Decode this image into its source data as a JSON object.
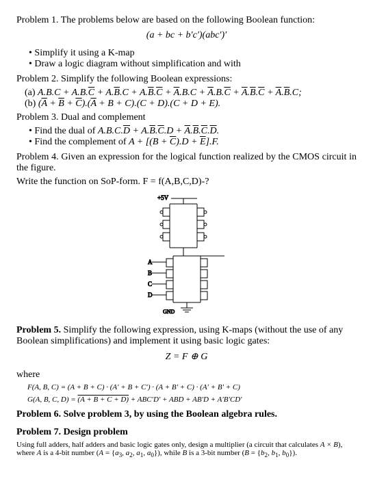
{
  "p1": {
    "title": "Problem 1. The problems below are based on the following Boolean function:",
    "expr": "(a + bc + b′c′)(abc′)′",
    "b1": "Simplify it using a K-map",
    "b2": "Draw a logic diagram without simplification and with"
  },
  "p2": {
    "title": "Problem 2. Simplify the following Boolean expressions:",
    "a_label": "(a)",
    "a_expr_html": "A.B.C + A.B.<span class='ov'>C</span> + A.<span class='ov'>B</span>.C + A.<span class='ov'>B</span>.<span class='ov'>C</span> + <span class='ov'>A</span>.B.C + <span class='ov'>A</span>.B.<span class='ov'>C</span> + <span class='ov'>A</span>.<span class='ov'>B</span>.<span class='ov'>C</span> + <span class='ov'>A</span>.<span class='ov'>B</span>.C;",
    "b_label": "(b)",
    "b_expr_html": "(<span class='ov'>A</span> + <span class='ov'>B</span> + <span class='ov'>C</span>).(<span class='ov'>A</span> + B + C).(C + D).(C + D + E)."
  },
  "p3": {
    "title": "Problem 3. Dual and complement",
    "b1_prefix": "Find the dual of ",
    "b1_expr_html": "A.B.C.<span class='ov'>D</span> + A.<span class='ov'>B</span>.<span class='ov'>C</span>.D + <span class='ov'>A</span>.<span class='ov'>B</span>.<span class='ov'>C</span>.<span class='ov'>D</span>.",
    "b2_prefix": "Find the complement of ",
    "b2_expr_html": "A + [(B + <span class='ov'>C</span>).D + <span class='ov'>E</span>].F."
  },
  "p4": {
    "title": "Problem 4. Given an expression for the logical function realized by the CMOS circuit in the figure.",
    "line2": "Write the function on SoP-form. F = f(A,B,C,D)-?",
    "fig": {
      "vdd": "+5V",
      "labels": [
        "A",
        "B",
        "C",
        "D"
      ],
      "gnd": "GND"
    }
  },
  "p5": {
    "title_html": "<b>Problem 5.</b> Simplify the following expression, using K-maps (without the use of any Boolean simplifications) and implement it using basic logic gates:",
    "z": "Z = F ⊕ G",
    "where": "where",
    "f_expr": "F(A, B, C) = (A + B + C) · (A′ + B + C′) · (A + B′ + C) · (A′ + B′ + C)",
    "g_expr_html": "G(A, B, C, D) = <span class='ov'>(A + B + C + D)</span> + ABC′D′ + ABD + AB′D + A′B′CD′"
  },
  "p6": {
    "title_html": "<b>Problem 6. Solve problem 3, by using the Boolean algebra rules.</b>"
  },
  "p7": {
    "title_html": "<b>Problem 7. Design problem</b>",
    "body_html": "Using full adders, half adders and basic logic gates only, design a multiplier (a circuit that calculates <i>A × B</i>), where <i>A</i> is a 4-bit number (<i>A</i> = {<i>a</i><sub>3</sub>, <i>a</i><sub>2</sub>, <i>a</i><sub>1</sub>, <i>a</i><sub>0</sub>}), while <i>B</i> is a 3-bit number (<i>B</i> = {<i>b</i><sub>2</sub>, <i>b</i><sub>1</sub>, <i>b</i><sub>0</sub>})."
  }
}
